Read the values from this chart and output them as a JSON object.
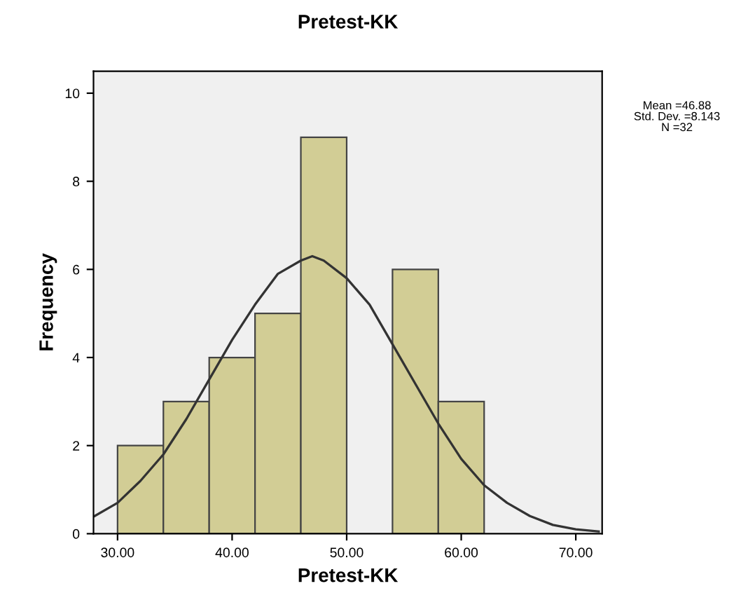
{
  "chart_data": {
    "type": "histogram",
    "title": "Pretest-KK",
    "xlabel": "Pretest-KK",
    "ylabel": "Frequency",
    "bins": [
      30,
      34,
      38,
      42,
      46,
      50,
      54,
      58,
      62
    ],
    "values": [
      2,
      3,
      4,
      5,
      9,
      0,
      6,
      3
    ],
    "color": "#d2cd95",
    "series": [
      {
        "type": "line",
        "color": "#333333",
        "x": [
          28,
          30,
          32,
          34,
          36,
          38,
          40,
          42,
          44,
          46,
          47,
          48,
          50,
          52,
          54,
          56,
          58,
          60,
          62,
          64,
          66,
          68,
          70,
          72
        ],
        "values": [
          0.4,
          0.7,
          1.2,
          1.8,
          2.6,
          3.5,
          4.4,
          5.2,
          5.9,
          6.2,
          6.3,
          6.2,
          5.8,
          5.2,
          4.3,
          3.4,
          2.5,
          1.7,
          1.1,
          0.7,
          0.4,
          0.2,
          0.1,
          0.05
        ]
      }
    ],
    "xlim": [
      27.9,
      72.3
    ],
    "ylim": [
      0,
      10.5
    ],
    "xticks": [
      {
        "value": 30,
        "label": "30.00"
      },
      {
        "value": 40,
        "label": "40.00"
      },
      {
        "value": 50,
        "label": "50.00"
      },
      {
        "value": 60,
        "label": "60.00"
      },
      {
        "value": 70,
        "label": "70.00"
      }
    ],
    "yticks": [
      0,
      2,
      4,
      6,
      8,
      10
    ],
    "annotations": [
      "Mean =46.88\nStd. Dev. =8.143\nN =32"
    ]
  }
}
